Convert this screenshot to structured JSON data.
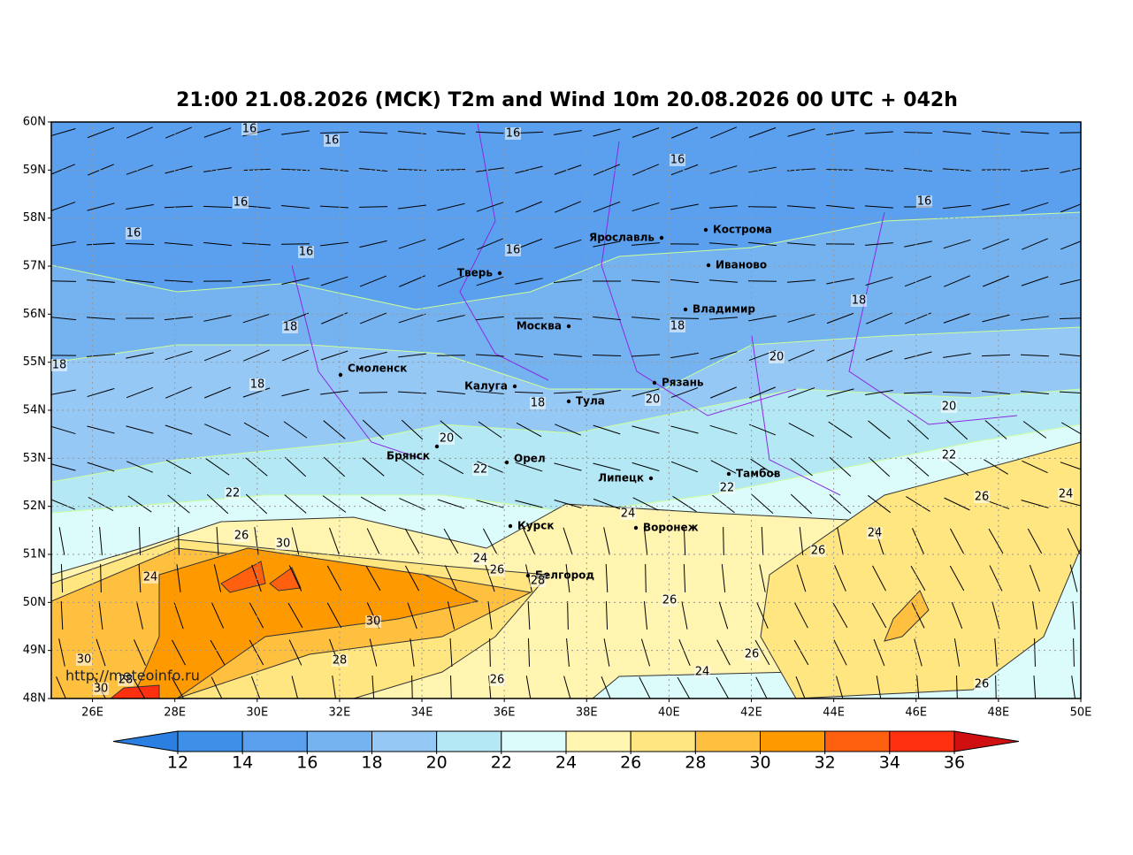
{
  "title": "21:00 21.08.2026 (MCK) T2m and Wind 10m 20.08.2026 00 UTC + 042h",
  "map": {
    "xlim": [
      25,
      50
    ],
    "ylim": [
      48,
      60
    ],
    "xticks": [
      {
        "value": 26,
        "label": "26E"
      },
      {
        "value": 28,
        "label": "28E"
      },
      {
        "value": 30,
        "label": "30E"
      },
      {
        "value": 32,
        "label": "32E"
      },
      {
        "value": 34,
        "label": "34E"
      },
      {
        "value": 36,
        "label": "36E"
      },
      {
        "value": 38,
        "label": "38E"
      },
      {
        "value": 40,
        "label": "40E"
      },
      {
        "value": 42,
        "label": "42E"
      },
      {
        "value": 44,
        "label": "44E"
      },
      {
        "value": 46,
        "label": "46E"
      },
      {
        "value": 48,
        "label": "48E"
      },
      {
        "value": 50,
        "label": "50E"
      }
    ],
    "yticks": [
      {
        "value": 48,
        "label": "48N"
      },
      {
        "value": 49,
        "label": "49N"
      },
      {
        "value": 50,
        "label": "50N"
      },
      {
        "value": 51,
        "label": "51N"
      },
      {
        "value": 52,
        "label": "52N"
      },
      {
        "value": 53,
        "label": "53N"
      },
      {
        "value": 54,
        "label": "54N"
      },
      {
        "value": 55,
        "label": "55N"
      },
      {
        "value": 56,
        "label": "56N"
      },
      {
        "value": 57,
        "label": "57N"
      },
      {
        "value": 58,
        "label": "58N"
      },
      {
        "value": 59,
        "label": "59N"
      },
      {
        "value": 60,
        "label": "60N"
      }
    ],
    "grid": true,
    "cities": [
      "Ярославль",
      "Кострома",
      "Иваново",
      "Тверь",
      "Владимир",
      "Москва",
      "Смоленск",
      "Калуга",
      "Рязань",
      "Тула",
      "Брянск",
      "Орел",
      "Липецк",
      "Тамбов",
      "Курск",
      "Воронеж",
      "Белгород"
    ],
    "contour_labels": [
      16,
      16,
      16,
      16,
      16,
      16,
      16,
      16,
      16,
      18,
      18,
      18,
      18,
      18,
      18,
      20,
      20,
      20,
      20,
      22,
      22,
      22,
      22,
      24,
      24,
      24,
      24,
      24,
      24,
      26,
      26,
      26,
      26,
      26,
      26,
      26,
      26,
      28,
      28,
      28,
      30,
      30,
      30,
      30
    ],
    "watermark": "http://meteoinfo.ru"
  },
  "colorbar": {
    "ticks": [
      12,
      14,
      16,
      18,
      20,
      22,
      24,
      26,
      28,
      30,
      32,
      34,
      36
    ],
    "colors": [
      "#2b7fe0",
      "#3d8fe8",
      "#5aa0ee",
      "#74b2f0",
      "#95c8f5",
      "#b4e8f5",
      "#dcfcfc",
      "#fff4b0",
      "#ffe680",
      "#ffc040",
      "#ff9900",
      "#ff6010",
      "#ff3010",
      "#d01010"
    ]
  }
}
